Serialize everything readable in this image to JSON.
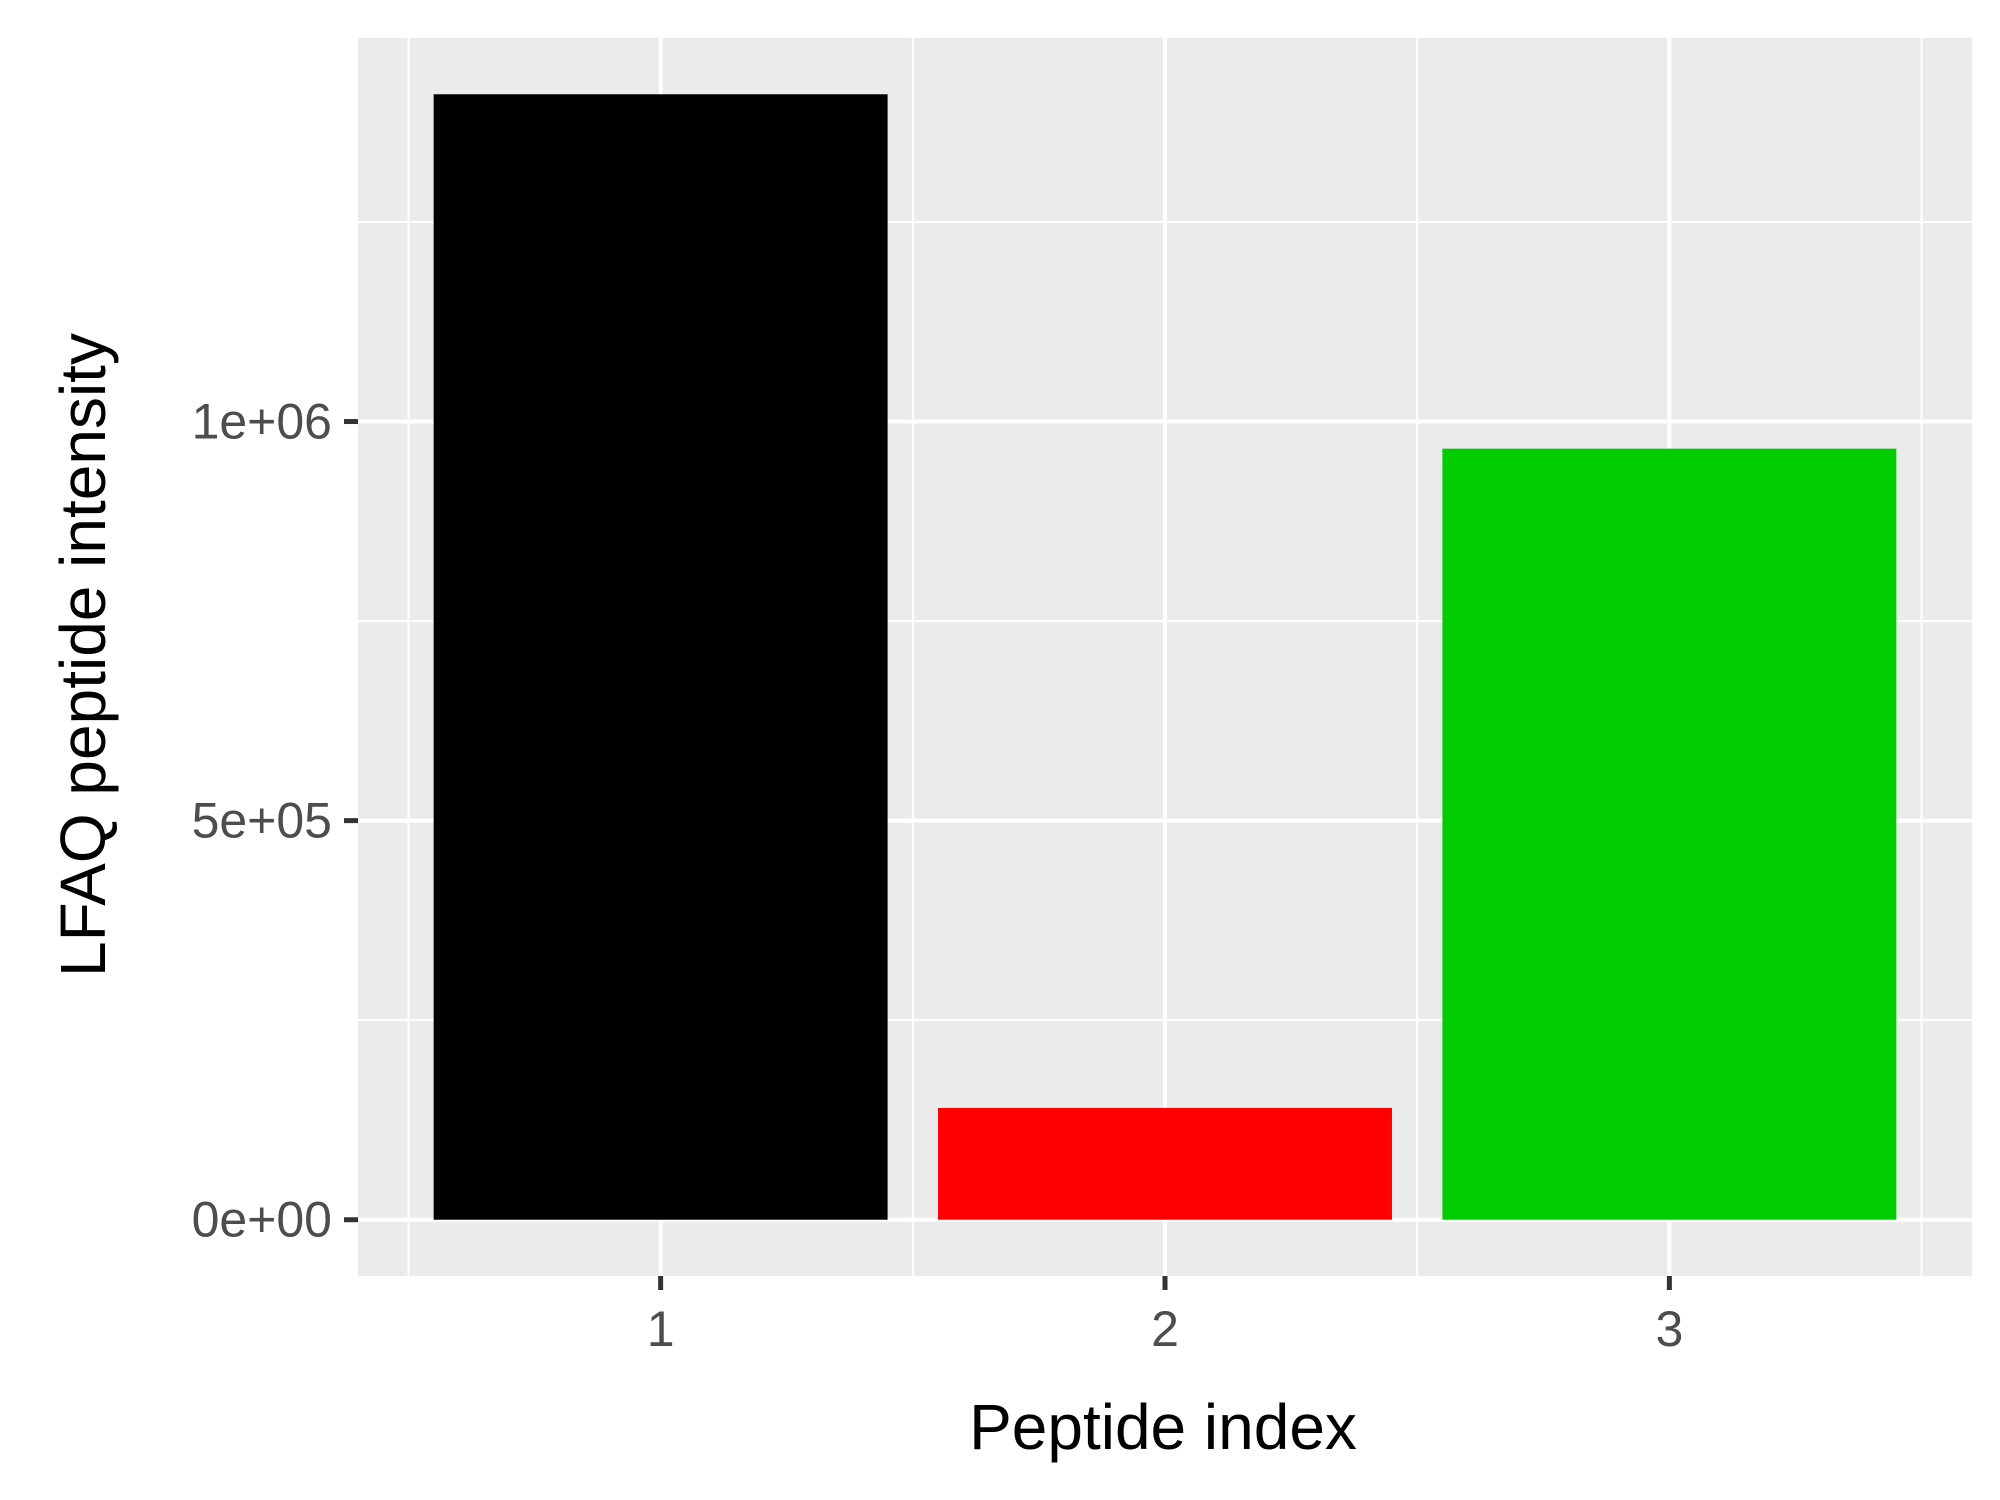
{
  "chart_data": {
    "type": "bar",
    "title": "",
    "xlabel": "Peptide index",
    "ylabel": "LFAQ peptide intensity",
    "categories": [
      "1",
      "2",
      "3"
    ],
    "values": [
      1410000,
      140000,
      966000
    ],
    "bar_colors": [
      "#000000",
      "#ff0000",
      "#00cd00"
    ],
    "ylim": [
      -70500,
      1480500
    ],
    "y_ticks": [
      {
        "value": 0,
        "label": "0e+00"
      },
      {
        "value": 500000,
        "label": "5e+05"
      },
      {
        "value": 1000000,
        "label": "1e+06"
      }
    ],
    "y_minor_ticks": [
      250000,
      750000,
      1250000
    ],
    "grid": true,
    "legend": "none",
    "panel_background": "#ebebeb",
    "grid_color": "#ffffff"
  }
}
